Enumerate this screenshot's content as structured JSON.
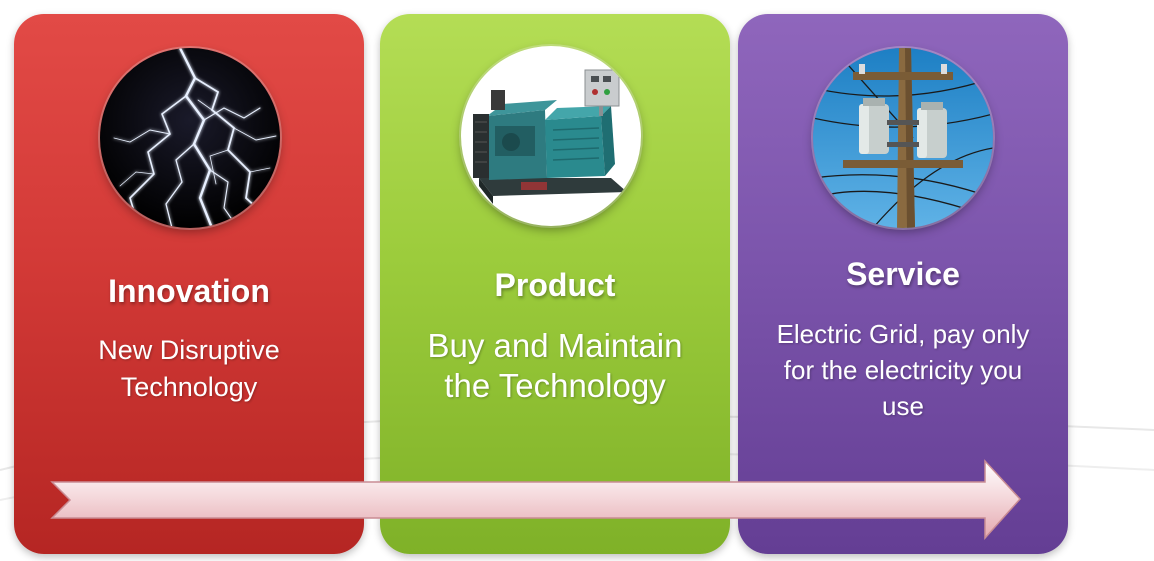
{
  "panels": [
    {
      "id": "innovation",
      "title": "Innovation",
      "description_lines": [
        "New Disruptive",
        "Technology"
      ],
      "color": "#d33a37",
      "image": "lightning-bolt"
    },
    {
      "id": "product",
      "title": "Product",
      "description_lines": [
        "Buy and Maintain",
        "the Technology"
      ],
      "color": "#9ccc3c",
      "image": "diesel-generator"
    },
    {
      "id": "service",
      "title": "Service",
      "description_lines": [
        "Electric Grid, pay only",
        "for the electricity you",
        "use"
      ],
      "color": "#7c55ac",
      "image": "power-pole-transformers"
    }
  ],
  "arrow": {
    "color": "#f3d2d6",
    "direction": "right"
  }
}
